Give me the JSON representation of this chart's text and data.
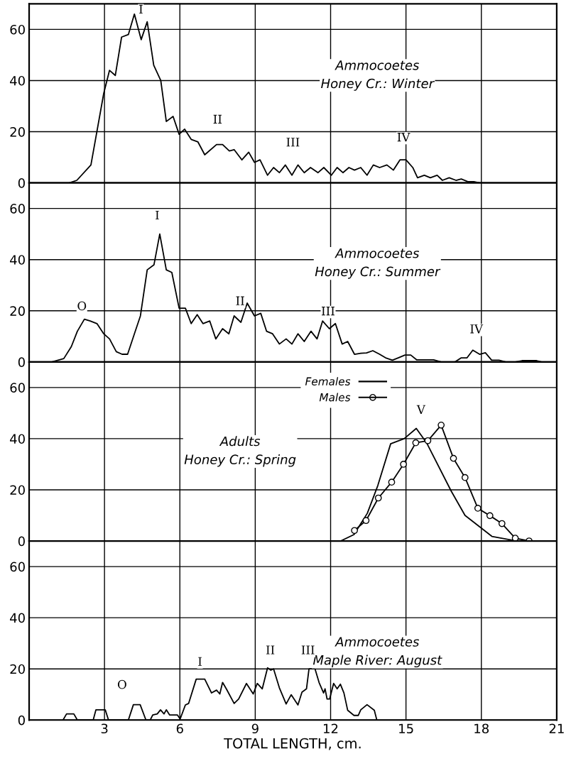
{
  "chart_data": [
    {
      "type": "line",
      "title": "Ammocoetes\nHoney Cr.: Winter",
      "xlim": [
        0,
        21
      ],
      "ylim": [
        0,
        70
      ],
      "xticks": [
        3,
        6,
        9,
        12,
        15,
        18,
        21
      ],
      "yticks": [
        0,
        20,
        40,
        60
      ],
      "grid": true,
      "tick_labels": "y",
      "legend": false,
      "series": [
        {
          "color": "#000000",
          "marker": "none",
          "line_style": "solid",
          "x": [
            1.6,
            1.9,
            2.46,
            2.97,
            3.2,
            3.43,
            3.68,
            3.95,
            4.19,
            4.46,
            4.7,
            4.96,
            5.24,
            5.46,
            5.73,
            5.97,
            6.19,
            6.45,
            6.72,
            6.99,
            7.46,
            7.7,
            7.97,
            8.16,
            8.47,
            8.74,
            8.97,
            9.19,
            9.49,
            9.73,
            9.96,
            10.2,
            10.46,
            10.7,
            10.95,
            11.2,
            11.5,
            11.73,
            12.03,
            12.26,
            12.49,
            12.73,
            12.95,
            13.2,
            13.45,
            13.7,
            13.95,
            14.24,
            14.5,
            14.76,
            15.0,
            15.27,
            15.46,
            15.73,
            15.97,
            16.24,
            16.45,
            16.72,
            16.99,
            17.2,
            17.46,
            17.7,
            17.93
          ],
          "values": [
            0,
            1,
            7,
            35,
            44,
            42,
            57,
            58,
            66,
            56,
            63,
            46,
            40,
            24,
            26,
            19,
            21,
            17,
            16,
            11,
            15,
            15,
            12.5,
            13,
            9,
            12,
            8,
            9,
            3,
            6,
            4,
            7,
            3,
            7,
            4,
            6,
            4,
            6,
            3,
            6,
            4,
            6,
            5,
            6,
            3,
            7,
            6,
            7,
            5,
            9,
            9,
            6,
            2,
            3,
            2,
            3,
            1,
            2,
            1,
            1.5,
            0.5,
            0.5,
            0
          ]
        }
      ],
      "annotations": [
        "I",
        "II",
        "III",
        "IV"
      ]
    },
    {
      "type": "line",
      "title": "Ammocoetes\nHoney Cr.: Summer",
      "xlim": [
        0,
        21
      ],
      "ylim": [
        0,
        70
      ],
      "xticks": [
        3,
        6,
        9,
        12,
        15,
        18,
        21
      ],
      "yticks": [
        0,
        20,
        40,
        60
      ],
      "grid": true,
      "tick_labels": "y",
      "legend": false,
      "series": [
        {
          "color": "#000000",
          "marker": "none",
          "line_style": "solid",
          "x": [
            0.9,
            1.38,
            1.68,
            1.92,
            2.2,
            2.43,
            2.7,
            2.97,
            3.2,
            3.47,
            3.7,
            3.92,
            4.19,
            4.43,
            4.7,
            4.97,
            5.2,
            5.46,
            5.68,
            5.97,
            6.22,
            6.45,
            6.69,
            6.92,
            7.19,
            7.43,
            7.7,
            7.95,
            8.16,
            8.43,
            8.68,
            8.97,
            9.22,
            9.45,
            9.69,
            9.96,
            10.23,
            10.46,
            10.7,
            10.95,
            11.22,
            11.46,
            11.68,
            11.95,
            12.19,
            12.46,
            12.68,
            12.95,
            13.2,
            13.43,
            13.68,
            13.95,
            14.19,
            14.46,
            14.69,
            14.96,
            15.19,
            15.43,
            16.1,
            16.4,
            16.95,
            17.2,
            17.43,
            17.66,
            17.93,
            18.16,
            18.41,
            18.7,
            18.97,
            19.35,
            19.62,
            20.2,
            20.4,
            20.9
          ],
          "values": [
            0,
            1.3,
            6,
            12,
            16.7,
            16,
            15,
            11,
            9,
            4,
            3,
            3,
            11,
            18,
            36,
            38,
            50,
            36,
            35,
            21,
            21,
            15,
            18.5,
            15,
            16,
            9,
            13,
            11,
            18,
            15.5,
            23,
            18,
            19,
            12,
            11,
            7,
            9,
            7,
            11,
            8,
            12,
            9,
            16,
            13,
            15,
            7,
            8,
            3,
            3.4,
            3.5,
            4.4,
            3,
            1.6,
            0.7,
            1.6,
            2.7,
            2.7,
            0.8,
            0.8,
            0,
            0,
            1.6,
            1.6,
            4.6,
            3,
            3.6,
            0.7,
            0.7,
            0,
            0,
            0.5,
            0.5,
            0,
            0
          ]
        }
      ],
      "annotations": [
        "O",
        "I",
        "II",
        "III",
        "IV"
      ]
    },
    {
      "type": "line",
      "title": "Adults\nHoney Cr.: Spring",
      "xlim": [
        0,
        21
      ],
      "ylim": [
        0,
        70
      ],
      "xticks": [
        3,
        6,
        9,
        12,
        15,
        18,
        21
      ],
      "yticks": [
        0,
        20,
        40,
        60
      ],
      "grid": true,
      "tick_labels": "y",
      "legend": "top",
      "series": [
        {
          "name": "Females",
          "color": "#000000",
          "marker": "none",
          "line_style": "solid",
          "x": [
            12.4,
            12.93,
            13.46,
            13.88,
            14.39,
            14.93,
            15.41,
            15.82,
            16.8,
            17.35,
            18.42,
            19.3,
            19.85
          ],
          "values": [
            0,
            2.5,
            10.8,
            21.7,
            38,
            40,
            44,
            38.4,
            19.5,
            10,
            1.8,
            0.2,
            0
          ]
        },
        {
          "name": "Males",
          "color": "#000000",
          "marker": "circle",
          "line_style": "solid",
          "x": [
            12.95,
            13.41,
            13.9,
            14.43,
            14.9,
            15.39,
            15.87,
            16.4,
            16.89,
            17.35,
            17.86,
            18.34,
            18.82,
            19.35,
            19.9
          ],
          "values": [
            4.1,
            8,
            16.8,
            23,
            30,
            38.4,
            39.2,
            45.3,
            32.3,
            24.8,
            12.8,
            9.9,
            6.8,
            1.1,
            0
          ]
        }
      ],
      "annotations": [
        "V"
      ]
    },
    {
      "type": "line",
      "title": "Ammocoetes\nMaple River: August",
      "xlabel": "TOTAL LENGTH, cm.",
      "xlim": [
        0,
        21
      ],
      "ylim": [
        0,
        70
      ],
      "xticks": [
        3,
        6,
        9,
        12,
        15,
        18,
        21
      ],
      "yticks": [
        0,
        20,
        40,
        60
      ],
      "grid": true,
      "legend": false,
      "series": [
        {
          "color": "#000000",
          "marker": "none",
          "line_style": "solid",
          "x": [
            1.35,
            1.49,
            1.78,
            1.92,
            2.55,
            2.66,
            3.03,
            3.16,
            3.95,
            4.15,
            4.42,
            4.65,
            4.82,
            4.92,
            5.1,
            5.23,
            5.37,
            5.46,
            5.59,
            5.9,
            6.01,
            6.22,
            6.35,
            6.65,
            6.99,
            7.26,
            7.46,
            7.59,
            7.7,
            7.86,
            8.16,
            8.34,
            8.65,
            8.92,
            9.08,
            9.28,
            9.49,
            9.62,
            9.73,
            9.96,
            10.23,
            10.43,
            10.7,
            10.86,
            11.04,
            11.14,
            11.38,
            11.54,
            11.72,
            11.78,
            11.86,
            11.96,
            12.12,
            12.26,
            12.39,
            12.53,
            12.68,
            12.93,
            13.1,
            13.2,
            13.45,
            13.74,
            13.84
          ],
          "values": [
            0,
            2.4,
            2.4,
            0,
            0,
            4,
            4,
            0,
            0,
            6,
            6,
            0,
            0,
            2,
            2.4,
            4,
            2.4,
            4,
            2,
            2,
            0.4,
            5.9,
            6.5,
            16,
            16,
            10.6,
            11.7,
            10.2,
            14.7,
            12,
            6.5,
            8.2,
            14.3,
            10.2,
            14.3,
            12.2,
            20.4,
            19.5,
            20,
            12.6,
            6.3,
            9.9,
            5.9,
            10.9,
            12.2,
            20,
            20,
            14.7,
            10.6,
            12.2,
            8.2,
            8.2,
            14.3,
            12.2,
            14,
            10.6,
            3.8,
            1.8,
            1.8,
            4,
            6,
            3.8,
            0
          ]
        }
      ],
      "annotations": [
        "O",
        "I",
        "II",
        "III"
      ]
    }
  ]
}
